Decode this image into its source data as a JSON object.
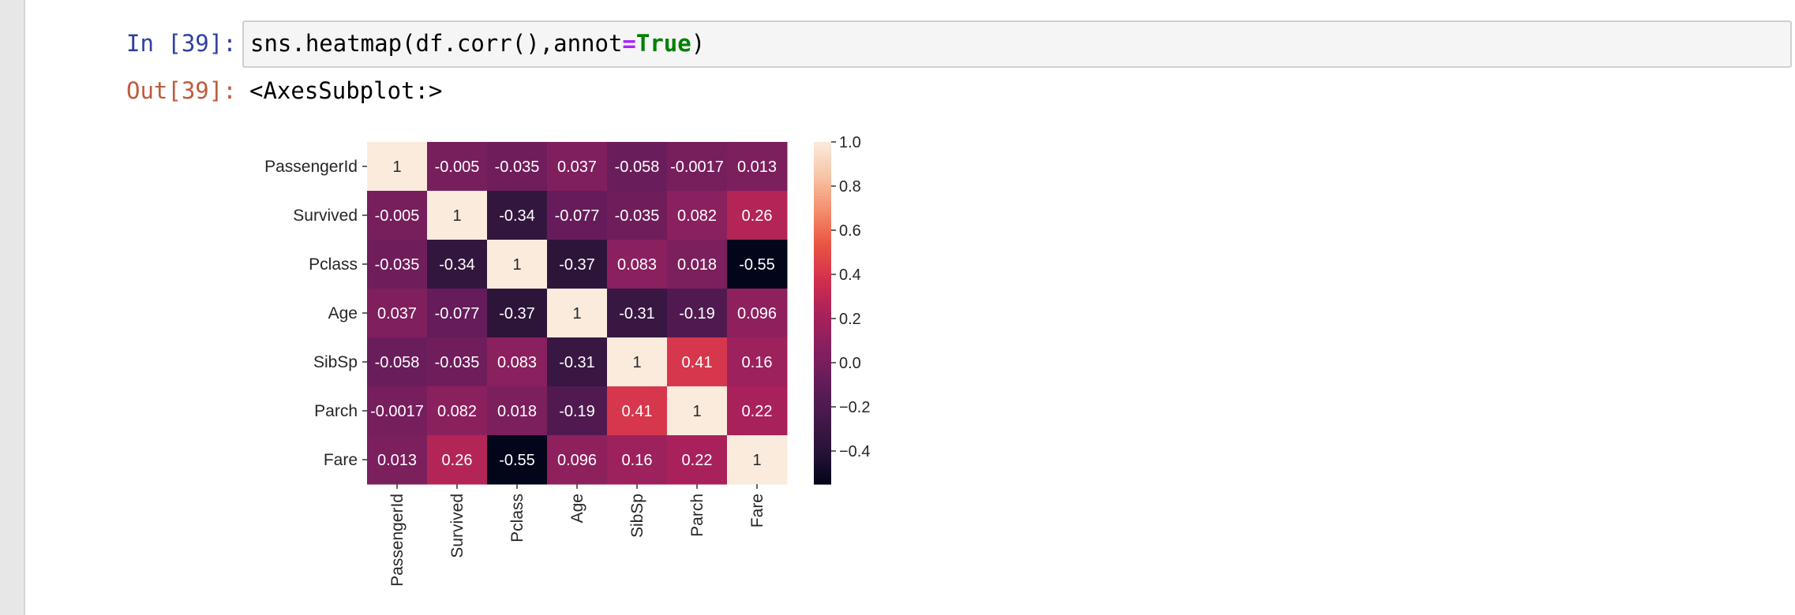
{
  "cell": {
    "in_prompt": "In [39]:",
    "out_prompt": "Out[39]:",
    "code": {
      "prefix": "sns.heatmap(df.corr(),annot",
      "operator": "=",
      "keyword": "True",
      "suffix": ")"
    },
    "output_text": "<AxesSubplot:>"
  },
  "chart_data": {
    "type": "heatmap",
    "labels": [
      "PassengerId",
      "Survived",
      "Pclass",
      "Age",
      "SibSp",
      "Parch",
      "Fare"
    ],
    "values": [
      [
        1,
        -0.005,
        -0.035,
        0.037,
        -0.058,
        -0.0017,
        0.013
      ],
      [
        -0.005,
        1,
        -0.34,
        -0.077,
        -0.035,
        0.082,
        0.26
      ],
      [
        -0.035,
        -0.34,
        1,
        -0.37,
        0.083,
        0.018,
        -0.55
      ],
      [
        0.037,
        -0.077,
        -0.37,
        1,
        -0.31,
        -0.19,
        0.096
      ],
      [
        -0.058,
        -0.035,
        0.083,
        -0.31,
        1,
        0.41,
        0.16
      ],
      [
        -0.0017,
        0.082,
        0.018,
        -0.19,
        0.41,
        1,
        0.22
      ],
      [
        0.013,
        0.26,
        -0.55,
        0.096,
        0.16,
        0.22,
        1
      ]
    ],
    "annotations": [
      [
        "1",
        "-0.005",
        "-0.035",
        "0.037",
        "-0.058",
        "-0.0017",
        "0.013"
      ],
      [
        "-0.005",
        "1",
        "-0.34",
        "-0.077",
        "-0.035",
        "0.082",
        "0.26"
      ],
      [
        "-0.035",
        "-0.34",
        "1",
        "-0.37",
        "0.083",
        "0.018",
        "-0.55"
      ],
      [
        "0.037",
        "-0.077",
        "-0.37",
        "1",
        "-0.31",
        "-0.19",
        "0.096"
      ],
      [
        "-0.058",
        "-0.035",
        "0.083",
        "-0.31",
        "1",
        "0.41",
        "0.16"
      ],
      [
        "-0.0017",
        "0.082",
        "0.018",
        "-0.19",
        "0.41",
        "1",
        "0.22"
      ],
      [
        "0.013",
        "0.26",
        "-0.55",
        "0.096",
        "0.16",
        "0.22",
        "1"
      ]
    ],
    "colormap": "rocket",
    "vmin": -0.55,
    "vmax": 1.0,
    "colorbar_ticks": [
      {
        "value": 1.0,
        "label": "1.0"
      },
      {
        "value": 0.8,
        "label": "0.8"
      },
      {
        "value": 0.6,
        "label": "0.6"
      },
      {
        "value": 0.4,
        "label": "0.4"
      },
      {
        "value": 0.2,
        "label": "0.2"
      },
      {
        "value": 0.0,
        "label": "0.0"
      },
      {
        "value": -0.2,
        "label": "−0.2"
      },
      {
        "value": -0.4,
        "label": "−0.4"
      }
    ],
    "colorbar_position": "right"
  }
}
